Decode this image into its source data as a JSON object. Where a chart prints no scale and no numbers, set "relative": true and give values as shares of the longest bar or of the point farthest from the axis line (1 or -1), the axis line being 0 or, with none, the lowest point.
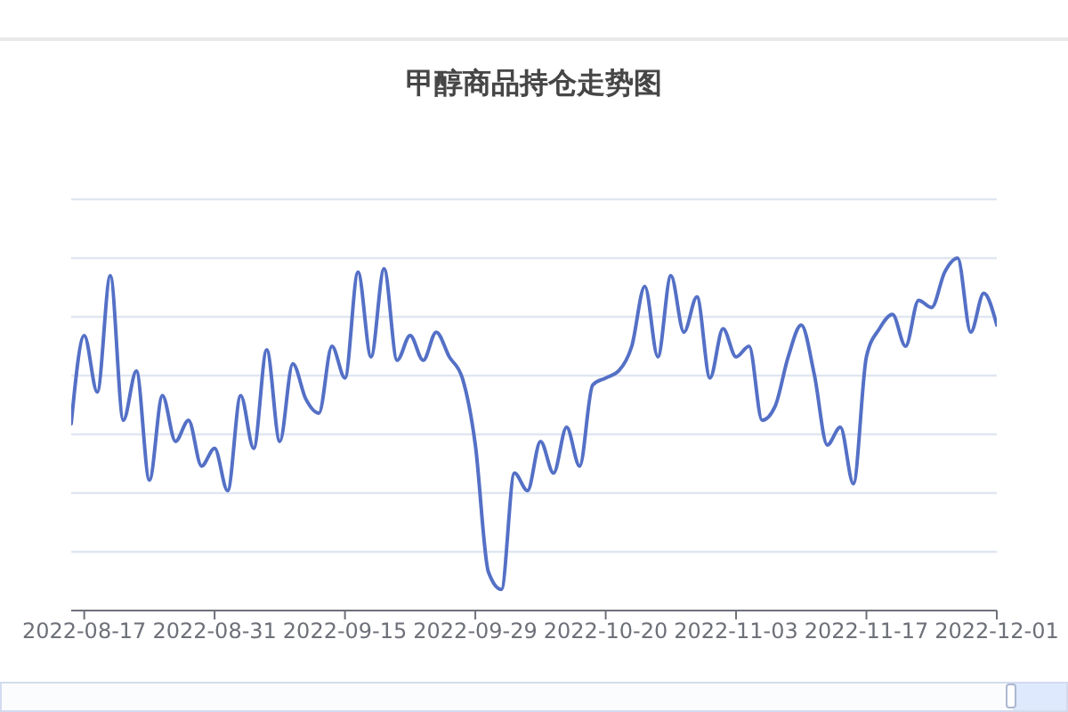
{
  "chart_data": {
    "type": "line",
    "title": "甲醇商品持仓走势图",
    "categories": [
      null,
      "2022-08-17",
      null,
      null,
      null,
      null,
      null,
      null,
      null,
      null,
      null,
      "2022-08-31",
      null,
      null,
      null,
      null,
      null,
      null,
      null,
      null,
      null,
      "2022-09-15",
      null,
      null,
      null,
      null,
      null,
      null,
      null,
      null,
      null,
      "2022-09-29",
      null,
      null,
      null,
      null,
      null,
      null,
      null,
      null,
      null,
      "2022-10-20",
      null,
      null,
      null,
      null,
      null,
      null,
      null,
      null,
      null,
      "2022-11-03",
      null,
      null,
      null,
      null,
      null,
      null,
      null,
      null,
      null,
      "2022-11-17",
      null,
      null,
      null,
      null,
      null,
      null,
      null,
      null,
      null,
      "2022-12-01"
    ],
    "series": [
      {
        "color": "#5470c6",
        "values": [
          0.53,
          0.78,
          0.62,
          0.95,
          0.54,
          0.68,
          0.37,
          0.61,
          0.48,
          0.54,
          0.41,
          0.46,
          0.34,
          0.61,
          0.46,
          0.74,
          0.48,
          0.7,
          0.6,
          0.56,
          0.75,
          0.66,
          0.96,
          0.72,
          0.97,
          0.71,
          0.78,
          0.71,
          0.79,
          0.72,
          0.66,
          0.47,
          0.11,
          0.06,
          0.39,
          0.34,
          0.48,
          0.39,
          0.52,
          0.41,
          0.64,
          0.66,
          0.68,
          0.75,
          0.92,
          0.72,
          0.95,
          0.79,
          0.89,
          0.66,
          0.8,
          0.72,
          0.75,
          0.54,
          0.58,
          0.72,
          0.81,
          0.67,
          0.47,
          0.52,
          0.36,
          0.72,
          0.8,
          0.84,
          0.75,
          0.88,
          0.86,
          0.96,
          1.0,
          0.79,
          0.9,
          0.81
        ]
      }
    ],
    "relative": true,
    "grid": "y",
    "marker": "none",
    "line_style": "solid",
    "tick_labels": "x"
  }
}
